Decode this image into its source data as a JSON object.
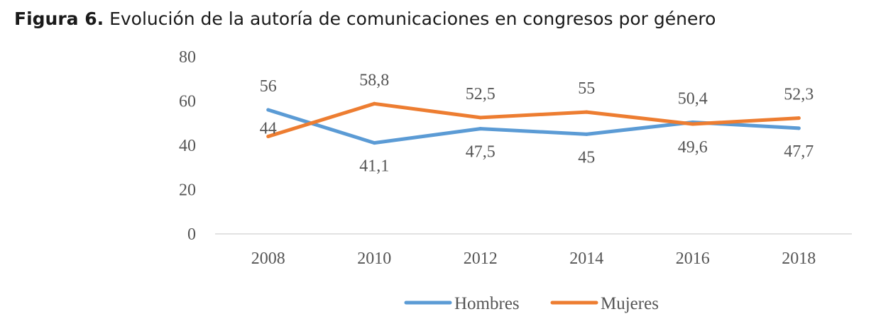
{
  "figure": {
    "label": "Figura 6.",
    "title": "Evolución de la autoría de comunicaciones en congresos por género"
  },
  "chart_data": {
    "type": "line",
    "x": [
      "2008",
      "2010",
      "2012",
      "2014",
      "2016",
      "2018"
    ],
    "ylim": [
      0,
      80
    ],
    "yticks": [
      0,
      20,
      40,
      60,
      80
    ],
    "grid": false,
    "legend": "bottom",
    "series": [
      {
        "name": "Hombres",
        "color": "#5b9bd5",
        "values": [
          56,
          41.1,
          47.5,
          45,
          50.4,
          47.7
        ],
        "labels": [
          "56",
          "41,1",
          "47,5",
          "45",
          "50,4",
          "47,7"
        ],
        "label_pos": [
          "above",
          "below",
          "below",
          "below",
          "above",
          "below"
        ]
      },
      {
        "name": "Mujeres",
        "color": "#ed7d31",
        "values": [
          44,
          58.8,
          52.5,
          55,
          49.6,
          52.3
        ],
        "labels": [
          "44",
          "58,8",
          "52,5",
          "55",
          "49,6",
          "52,3"
        ],
        "label_pos": [
          "on",
          "above",
          "above",
          "above",
          "below",
          "above"
        ]
      }
    ]
  }
}
